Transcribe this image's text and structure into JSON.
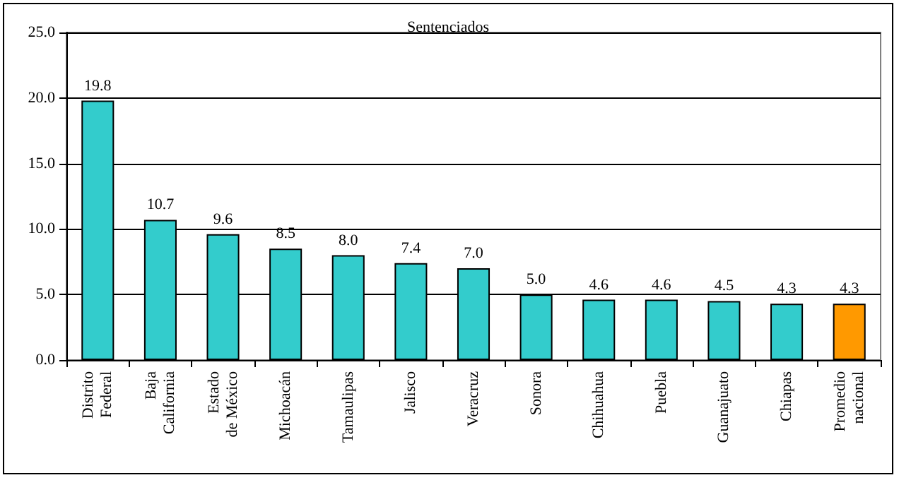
{
  "chart_data": {
    "type": "bar",
    "title": "Sentenciados",
    "categories": [
      "Distrito Federal",
      "Baja California",
      "Estado de México",
      "Michoacán",
      "Tamaulipas",
      "Jalisco",
      "Veracruz",
      "Sonora",
      "Chihuahua",
      "Puebla",
      "Guanajuato",
      "Chiapas",
      "Promedio nacional"
    ],
    "values": [
      19.8,
      10.7,
      9.6,
      8.5,
      8.0,
      7.4,
      7.0,
      5.0,
      4.6,
      4.6,
      4.5,
      4.3,
      4.3
    ],
    "colors": [
      "#33cccc",
      "#33cccc",
      "#33cccc",
      "#33cccc",
      "#33cccc",
      "#33cccc",
      "#33cccc",
      "#33cccc",
      "#33cccc",
      "#33cccc",
      "#33cccc",
      "#33cccc",
      "#ff9900"
    ],
    "value_labels": [
      "19.8",
      "10.7",
      "9.6",
      "8.5",
      "8.0",
      "7.4",
      "7.0",
      "5.0",
      "4.6",
      "4.6",
      "4.5",
      "4.3",
      "4.3"
    ],
    "ylim": [
      0,
      25
    ],
    "yticks": [
      {
        "value": 0,
        "label": "0.0"
      },
      {
        "value": 5,
        "label": "5.0"
      },
      {
        "value": 10,
        "label": "10.0"
      },
      {
        "value": 15,
        "label": "15.0"
      },
      {
        "value": 20,
        "label": "20.0"
      },
      {
        "value": 25,
        "label": "25.0"
      }
    ],
    "grid": "y"
  }
}
